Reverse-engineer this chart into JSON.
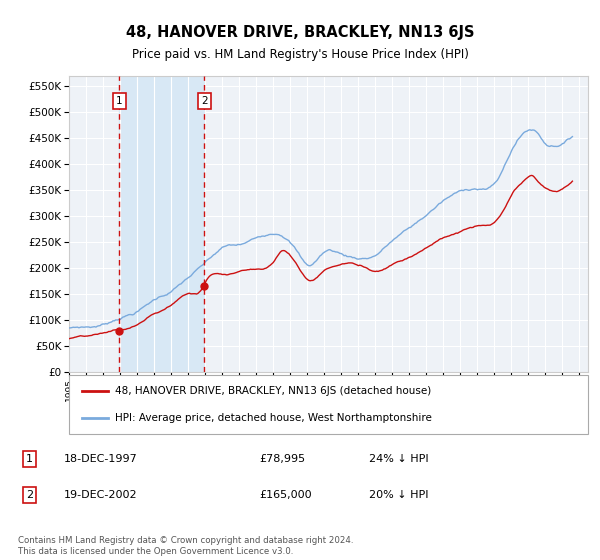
{
  "title": "48, HANOVER DRIVE, BRACKLEY, NN13 6JS",
  "subtitle": "Price paid vs. HM Land Registry's House Price Index (HPI)",
  "ylim": [
    0,
    570000
  ],
  "yticks": [
    0,
    50000,
    100000,
    150000,
    200000,
    250000,
    300000,
    350000,
    400000,
    450000,
    500000,
    550000
  ],
  "xlim_start": 1995.0,
  "xlim_end": 2025.5,
  "background_color": "#ffffff",
  "plot_bg_color": "#eef2f7",
  "grid_color": "#ffffff",
  "hpi_color": "#7aaadd",
  "price_color": "#cc1111",
  "vline_color": "#cc1111",
  "highlight_bg": "#d8e8f5",
  "transaction1_x": 1997.96,
  "transaction1_y": 78995,
  "transaction1_label": "1",
  "transaction1_date": "18-DEC-1997",
  "transaction1_price": "£78,995",
  "transaction1_hpi": "24% ↓ HPI",
  "transaction2_x": 2002.96,
  "transaction2_y": 165000,
  "transaction2_label": "2",
  "transaction2_date": "19-DEC-2002",
  "transaction2_price": "£165,000",
  "transaction2_hpi": "20% ↓ HPI",
  "legend_line1": "48, HANOVER DRIVE, BRACKLEY, NN13 6JS (detached house)",
  "legend_line2": "HPI: Average price, detached house, West Northamptonshire",
  "footnote": "Contains HM Land Registry data © Crown copyright and database right 2024.\nThis data is licensed under the Open Government Licence v3.0."
}
